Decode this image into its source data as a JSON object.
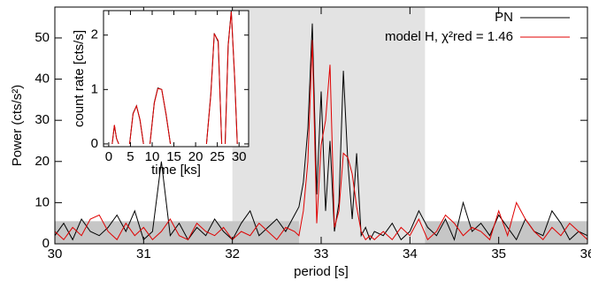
{
  "chart_data": [
    {
      "type": "line",
      "xlabel": "period [s]",
      "ylabel": "Power (cts/s²)",
      "xlim": [
        30,
        36
      ],
      "ylim": [
        0,
        57.5
      ],
      "xticks": [
        30,
        31,
        32,
        33,
        34,
        35,
        36
      ],
      "yticks": [
        0,
        10,
        20,
        30,
        40,
        50
      ],
      "grid": false,
      "legend": "upper right",
      "shaded_regions": [
        {
          "xlim": [
            32,
            34.17
          ],
          "ylim": [
            0,
            57.5
          ],
          "color": "#e3e3e3"
        },
        {
          "xlim": [
            30,
            32.75
          ],
          "ylim": [
            0,
            5.5
          ],
          "color": "#c6c6c6"
        },
        {
          "xlim": [
            34.17,
            36
          ],
          "ylim": [
            0,
            5.5
          ],
          "color": "#c6c6c6"
        }
      ],
      "x": [
        30.0,
        30.1,
        30.2,
        30.3,
        30.4,
        30.5,
        30.6,
        30.7,
        30.8,
        30.9,
        31.0,
        31.1,
        31.2,
        31.3,
        31.4,
        31.5,
        31.6,
        31.7,
        31.8,
        31.9,
        32.0,
        32.1,
        32.2,
        32.3,
        32.4,
        32.5,
        32.6,
        32.7,
        32.75,
        32.8,
        32.85,
        32.9,
        32.95,
        33.0,
        33.05,
        33.1,
        33.15,
        33.2,
        33.25,
        33.3,
        33.35,
        33.4,
        33.45,
        33.5,
        33.55,
        33.6,
        33.7,
        33.8,
        33.9,
        34.0,
        34.1,
        34.2,
        34.3,
        34.4,
        34.5,
        34.6,
        34.7,
        34.8,
        34.9,
        35.0,
        35.1,
        35.2,
        35.3,
        35.4,
        35.5,
        35.6,
        35.7,
        35.8,
        35.9,
        36.0
      ],
      "series": [
        {
          "name": "PN",
          "color": "#000000",
          "values": [
            2,
            5,
            1,
            6,
            3,
            2,
            4,
            7,
            3,
            8,
            1,
            3,
            20,
            2,
            5,
            1,
            4,
            2,
            6,
            3,
            1,
            5,
            8,
            2,
            4,
            6,
            3,
            7,
            9,
            15,
            28,
            53.5,
            12,
            37,
            8,
            25,
            3,
            10,
            42,
            20,
            6,
            22,
            2,
            4,
            1,
            3,
            2,
            5,
            1,
            3,
            8,
            4,
            2,
            6,
            1,
            10,
            3,
            5,
            2,
            7,
            4,
            1,
            6,
            3,
            2,
            8,
            5,
            1,
            3,
            2
          ]
        },
        {
          "name": "model H, χ²red = 1.46",
          "color": "#e00000",
          "values": [
            3,
            1,
            4,
            2,
            6,
            7,
            3,
            1,
            5,
            2,
            4,
            1,
            3,
            6,
            2,
            1,
            5,
            3,
            2,
            4,
            1,
            3,
            2,
            5,
            3,
            1,
            4,
            3,
            2,
            8,
            20,
            49.5,
            5,
            24,
            30,
            43.5,
            4,
            8,
            22,
            21,
            17,
            9,
            3,
            1,
            2,
            1,
            3,
            1,
            4,
            2,
            6,
            1,
            3,
            7,
            5,
            2,
            4,
            3,
            1,
            8,
            2,
            10,
            6,
            3,
            1,
            4,
            2,
            5,
            3,
            1
          ]
        }
      ]
    },
    {
      "type": "line",
      "xlabel": "time [ks]",
      "ylabel": "count rate [cts/s]",
      "xlim": [
        -1.2,
        32.2
      ],
      "ylim": [
        -0.05,
        2.45
      ],
      "xticks": [
        0,
        5,
        10,
        15,
        20,
        25,
        30
      ],
      "yticks": [
        0,
        1,
        2
      ],
      "grid": false,
      "x": [
        0.8,
        1.3,
        1.8,
        2.3,
        3.5,
        4.8,
        5.6,
        6.4,
        7.2,
        8.0,
        8.5,
        9.5,
        10.5,
        11.3,
        12.2,
        13.2,
        14.2,
        18,
        22.5,
        23.5,
        24.3,
        25.2,
        26.0,
        26.3,
        26.8,
        27.5,
        28.2,
        29.0,
        29.6
      ],
      "series": [
        {
          "name": "PN",
          "color": "#000000",
          "values": [
            0,
            0.34,
            0.1,
            0,
            null,
            0,
            0.56,
            0.7,
            0.44,
            0,
            null,
            0,
            0.76,
            1.03,
            1.0,
            0.54,
            0,
            null,
            0,
            0.92,
            2.03,
            1.88,
            0,
            null,
            0,
            1.82,
            2.44,
            1.18,
            0
          ]
        },
        {
          "name": "model H",
          "color": "#e00000",
          "values": [
            0,
            0.35,
            0.1,
            0,
            null,
            0,
            0.55,
            0.7,
            0.45,
            0,
            null,
            0,
            0.75,
            1.02,
            1.0,
            0.55,
            0,
            null,
            0,
            0.9,
            2.02,
            1.9,
            0,
            null,
            0,
            1.8,
            2.43,
            1.2,
            0
          ]
        }
      ]
    }
  ]
}
